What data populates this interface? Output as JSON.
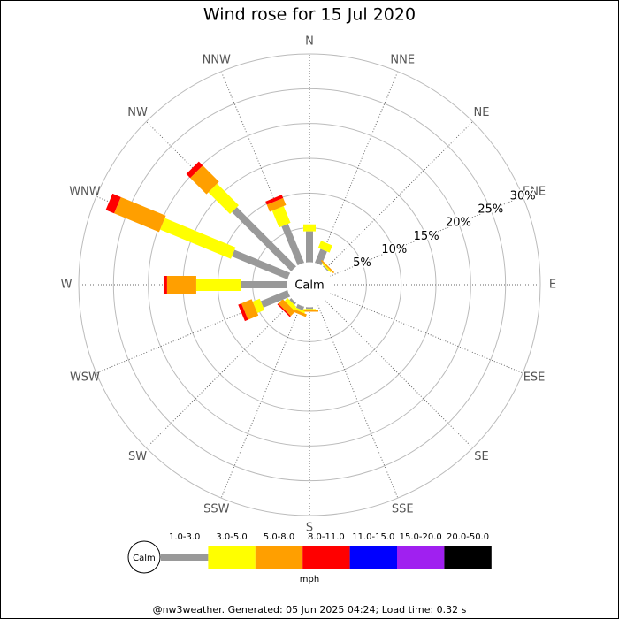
{
  "chart_data": {
    "type": "windrose",
    "title": "Wind rose for 15 Jul 2020",
    "categories": [
      "N",
      "NNE",
      "NE",
      "ENE",
      "E",
      "ESE",
      "SE",
      "SSE",
      "S",
      "SSW",
      "SW",
      "WSW",
      "W",
      "WNW",
      "NW",
      "NNW"
    ],
    "calm_label": "Calm",
    "rlim": [
      0,
      30
    ],
    "rticks": [
      {
        "value": 5,
        "label": "5%"
      },
      {
        "value": 10,
        "label": "10%"
      },
      {
        "value": 15,
        "label": "15%"
      },
      {
        "value": 20,
        "label": "20%"
      },
      {
        "value": 25,
        "label": "25%"
      },
      {
        "value": 30,
        "label": "30%"
      }
    ],
    "series": [
      {
        "name": "1.0-3.0",
        "color": "#999999",
        "values": [
          4.5,
          2.2,
          0.2,
          0,
          0,
          0,
          0,
          0,
          0.3,
          0.6,
          0.4,
          4.2,
          6.7,
          8.7,
          12.1,
          6.1
        ]
      },
      {
        "name": "3.0-5.0",
        "color": "#ffff00",
        "values": [
          1.0,
          1.1,
          0.2,
          0,
          0,
          0,
          0,
          0,
          0.2,
          0.3,
          0.6,
          1.1,
          6.4,
          11.0,
          4.4,
          2.6
        ]
      },
      {
        "name": "5.0-8.0",
        "color": "#ff9f00",
        "values": [
          0,
          0,
          0.2,
          0,
          0,
          0,
          0,
          0,
          0.2,
          0.4,
          0.9,
          1.6,
          4.2,
          7.0,
          3.3,
          1.1
        ]
      },
      {
        "name": "8.0-11.0",
        "color": "#ff0000",
        "values": [
          0,
          0,
          0,
          0,
          0,
          0,
          0,
          0,
          0,
          0,
          0.2,
          0.5,
          0.5,
          1.3,
          0.8,
          0.5
        ]
      },
      {
        "name": "11.0-15.0",
        "color": "#0000ff",
        "values": [
          0,
          0,
          0,
          0,
          0,
          0,
          0,
          0,
          0,
          0,
          0,
          0,
          0,
          0,
          0,
          0
        ]
      },
      {
        "name": "15.0-20.0",
        "color": "#a020f0",
        "values": [
          0,
          0,
          0,
          0,
          0,
          0,
          0,
          0,
          0,
          0,
          0,
          0,
          0,
          0,
          0,
          0
        ]
      },
      {
        "name": "20.0-50.0",
        "color": "#000000",
        "values": [
          0,
          0,
          0,
          0,
          0,
          0,
          0,
          0,
          0,
          0,
          0,
          0,
          0,
          0,
          0,
          0
        ]
      }
    ],
    "unit": "mph",
    "footer": "@nw3weather. Generated: 05 Jun 2025 04:24; Load time: 0.32 s"
  }
}
